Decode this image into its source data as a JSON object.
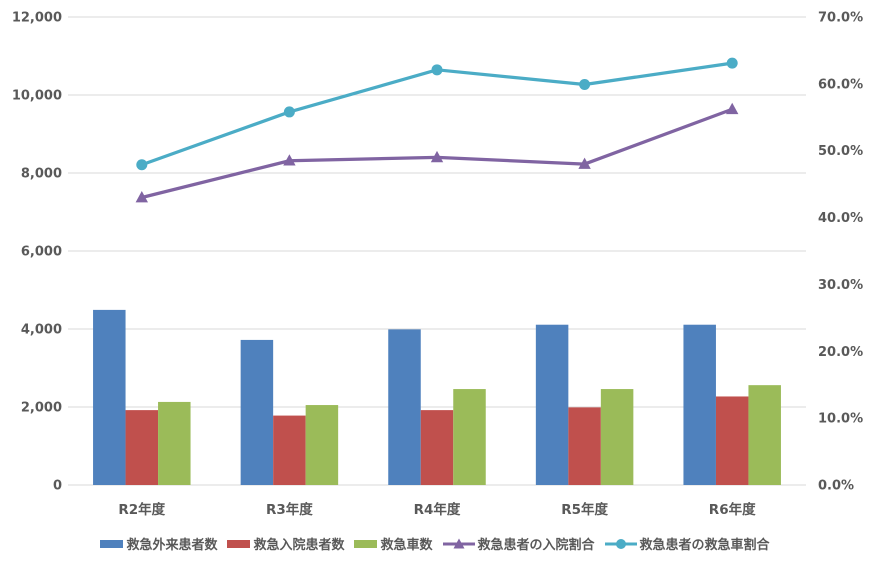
{
  "chart_data": {
    "type": "bar",
    "subtype": "bar-line-combo",
    "title": "",
    "categories": [
      "R2年度",
      "R3年度",
      "R4年度",
      "R5年度",
      "R6年度"
    ],
    "bar_series": [
      {
        "name": "救急外来患者数",
        "color": "#4F81BD",
        "axis": "left",
        "values": [
          4490,
          3720,
          3990,
          4110,
          4110
        ]
      },
      {
        "name": "救急入院患者数",
        "color": "#C0504D",
        "axis": "left",
        "values": [
          1920,
          1780,
          1920,
          1990,
          2270
        ]
      },
      {
        "name": "救急車数",
        "color": "#9BBB59",
        "axis": "left",
        "values": [
          2130,
          2050,
          2460,
          2460,
          2560
        ]
      }
    ],
    "line_series": [
      {
        "name": "救急患者の入院割合",
        "color": "#8064A2",
        "marker": "triangle",
        "axis": "right",
        "values": [
          43.0,
          48.5,
          49.0,
          48.0,
          56.2
        ]
      },
      {
        "name": "救急患者の救急車割合",
        "color": "#4BACC6",
        "marker": "circle",
        "axis": "right",
        "values": [
          47.9,
          55.8,
          62.1,
          59.9,
          63.1
        ]
      }
    ],
    "left_axis": {
      "min": 0,
      "max": 12000,
      "step": 2000,
      "tick_labels": [
        "0",
        "2,000",
        "4,000",
        "6,000",
        "8,000",
        "10,000",
        "12,000"
      ]
    },
    "right_axis": {
      "min": 0,
      "max": 70,
      "step": 10,
      "tick_labels": [
        "0.0%",
        "10.0%",
        "20.0%",
        "30.0%",
        "40.0%",
        "50.0%",
        "60.0%",
        "70.0%"
      ]
    },
    "grid": true,
    "legend_position": "bottom",
    "colors": {
      "gridline": "#D9D9D9",
      "axis_line": "#D9D9D9",
      "tick_text": "#595959",
      "background": "#FFFFFF"
    }
  }
}
